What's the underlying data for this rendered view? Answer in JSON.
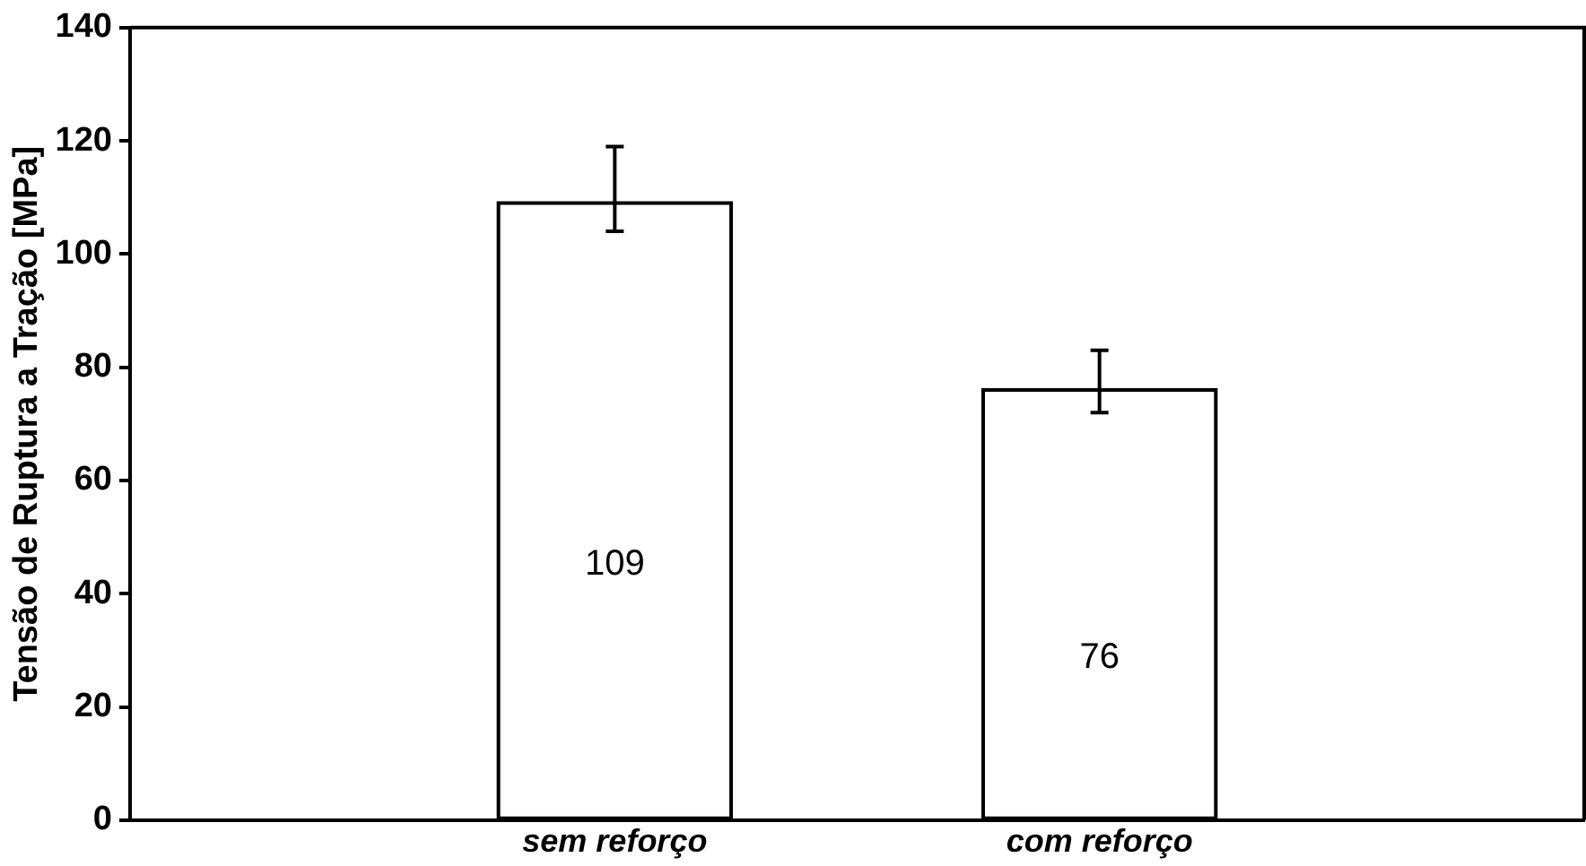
{
  "chart_data": {
    "type": "bar",
    "ylabel": "Tensão de Ruptura a Tração [MPa]",
    "categories": [
      "sem reforço",
      "com reforço"
    ],
    "values": [
      109,
      76
    ],
    "color": "#ffffff",
    "errors": [
      [
        104,
        119
      ],
      [
        72,
        83
      ]
    ],
    "ylim": [
      0,
      140
    ],
    "yticks": [
      0,
      20,
      40,
      60,
      80,
      100,
      120,
      140
    ],
    "data_labels": true,
    "grid": false,
    "legend": false
  }
}
